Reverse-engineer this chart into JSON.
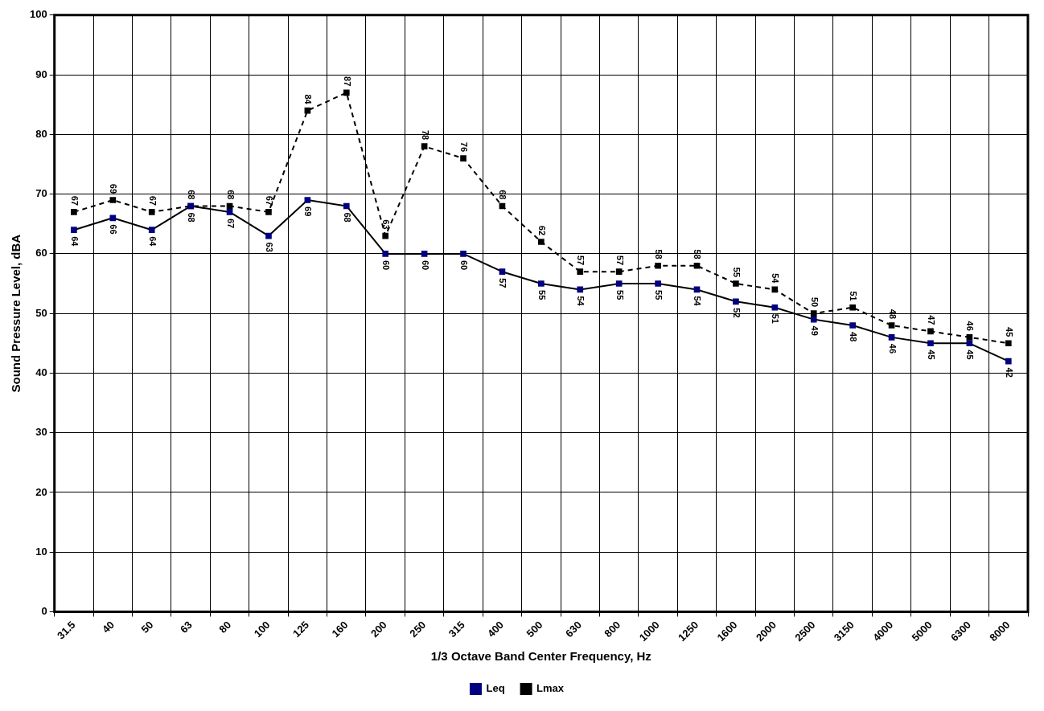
{
  "chart_data": {
    "type": "line",
    "xlabel": "1/3 Octave Band Center Frequency, Hz",
    "ylabel": "Sound Pressure Level, dBA",
    "categories": [
      "31.5",
      "40",
      "50",
      "63",
      "80",
      "100",
      "125",
      "160",
      "200",
      "250",
      "315",
      "400",
      "500",
      "630",
      "800",
      "1000",
      "1250",
      "1600",
      "2000",
      "2500",
      "3150",
      "4000",
      "5000",
      "6300",
      "8000"
    ],
    "series": [
      {
        "name": "Leq",
        "color": "#000080",
        "line_style": "solid",
        "values": [
          64,
          66,
          64,
          68,
          67,
          63,
          69,
          68,
          60,
          60,
          60,
          57,
          55,
          54,
          55,
          55,
          54,
          52,
          51,
          49,
          48,
          46,
          45,
          45,
          42
        ]
      },
      {
        "name": "Lmax",
        "color": "#000000",
        "line_style": "dashed",
        "values": [
          67,
          69,
          67,
          68,
          68,
          67,
          84,
          87,
          63,
          78,
          76,
          68,
          62,
          57,
          57,
          58,
          58,
          55,
          54,
          50,
          51,
          48,
          47,
          46,
          45
        ]
      }
    ],
    "ylim": [
      0,
      100
    ],
    "yticks": [
      0,
      10,
      20,
      30,
      40,
      50,
      60,
      70,
      80,
      90,
      100
    ],
    "grid": true,
    "legend": "bottom",
    "marker": "square",
    "data_labels": true
  }
}
